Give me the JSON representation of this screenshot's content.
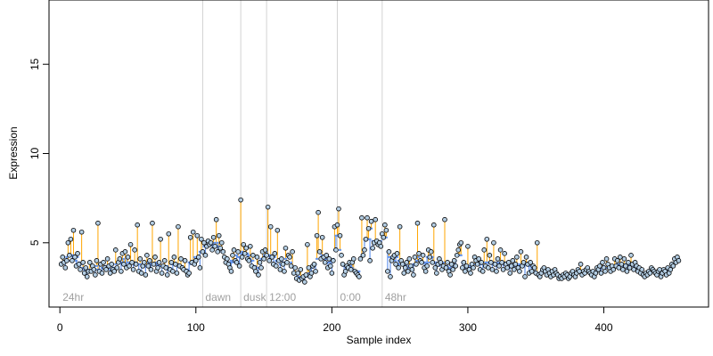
{
  "chart_data": {
    "type": "scatter",
    "title": "",
    "xlabel": "Sample index",
    "ylabel": "Expression",
    "xlim": [
      -8,
      477
    ],
    "ylim": [
      1.4,
      18.6
    ],
    "xticks": [
      0,
      100,
      200,
      300,
      400
    ],
    "yticks": [
      5,
      10,
      15
    ],
    "grid": false,
    "legend": "none",
    "colors": {
      "points_fill": "#b3cde3",
      "points_stroke": "#000000",
      "baseline": "#6495ed",
      "segment": "#ffa500",
      "phase_line": "#d3d3d3",
      "phase_label": "#a0a0a0"
    },
    "phases": [
      {
        "label": "24hr",
        "x": 0
      },
      {
        "label": "dawn",
        "x": 105
      },
      {
        "label": "dusk",
        "x": 133
      },
      {
        "label": "12:00",
        "x": 152
      },
      {
        "label": "0:00",
        "x": 204
      },
      {
        "label": "48hr",
        "x": 237
      }
    ],
    "series": [
      {
        "values": [
          3.8,
          4.2,
          3.9,
          3.6,
          4.0,
          5.0,
          4.3,
          5.2,
          4.0,
          5.7,
          4.2,
          3.7,
          4.4,
          3.8,
          3.5,
          5.6,
          3.9,
          3.3,
          3.6,
          3.1,
          3.4,
          3.9,
          3.4,
          3.7,
          3.5,
          3.2,
          4.0,
          6.1,
          3.4,
          3.8,
          3.3,
          3.9,
          3.6,
          3.5,
          4.1,
          3.7,
          3.3,
          3.8,
          3.5,
          3.4,
          4.6,
          3.6,
          3.9,
          4.1,
          3.4,
          4.4,
          3.8,
          4.5,
          3.6,
          4.2,
          3.7,
          4.9,
          3.9,
          3.5,
          4.6,
          3.8,
          6.0,
          3.4,
          4.1,
          3.3,
          3.7,
          3.9,
          3.2,
          4.3,
          3.7,
          4.0,
          3.5,
          6.1,
          3.8,
          4.2,
          3.4,
          3.6,
          3.9,
          5.2,
          3.3,
          3.7,
          4.0,
          3.6,
          3.2,
          5.5,
          3.5,
          3.9,
          3.4,
          4.2,
          3.8,
          3.3,
          5.9,
          3.7,
          4.1,
          3.6,
          3.5,
          4.0,
          3.4,
          3.2,
          3.3,
          5.3,
          3.9,
          5.6,
          3.8,
          4.0,
          5.4,
          4.2,
          3.6,
          5.2,
          4.5,
          5.0,
          4.3,
          4.8,
          5.1,
          4.9,
          5.0,
          4.6,
          5.3,
          4.8,
          6.3,
          4.5,
          5.4,
          4.7,
          5.0,
          4.5,
          4.2,
          3.9,
          4.1,
          3.8,
          3.6,
          3.4,
          4.3,
          4.6,
          4.0,
          3.9,
          4.5,
          3.7,
          7.4,
          4.2,
          4.9,
          4.4,
          4.7,
          4.1,
          4.0,
          4.8,
          3.7,
          4.3,
          3.6,
          3.4,
          4.2,
          3.2,
          3.9,
          3.6,
          4.5,
          4.1,
          4.6,
          4.3,
          7.0,
          4.0,
          5.9,
          4.2,
          3.8,
          4.4,
          3.7,
          5.7,
          4.0,
          3.5,
          4.1,
          3.8,
          3.4,
          4.7,
          3.9,
          4.3,
          4.2,
          3.7,
          4.5,
          3.3,
          3.6,
          3.0,
          3.3,
          2.9,
          3.5,
          3.0,
          3.1,
          2.8,
          3.2,
          4.9,
          3.6,
          3.1,
          3.3,
          3.7,
          3.8,
          3.4,
          5.4,
          6.7,
          4.5,
          4.1,
          5.3,
          4.2,
          3.9,
          4.3,
          3.6,
          4.1,
          3.7,
          3.3,
          4.0,
          5.9,
          4.6,
          6.0,
          6.9,
          5.4,
          4.3,
          3.8,
          3.2,
          3.4,
          3.7,
          3.6,
          3.9,
          3.5,
          3.9,
          4.1,
          3.4,
          3.3,
          3.2,
          3.1,
          4.1,
          6.4,
          4.3,
          4.6,
          5.2,
          6.4,
          5.8,
          4.0,
          6.2,
          4.7,
          5.0,
          6.3,
          5.1,
          4.9,
          5.0,
          4.8,
          5.5,
          5.3,
          6.0,
          5.7,
          3.4,
          4.5,
          3.1,
          4.0,
          4.2,
          4.3,
          3.8,
          4.4,
          3.6,
          5.9,
          4.0,
          3.8,
          3.3,
          3.6,
          3.9,
          3.4,
          4.1,
          3.7,
          3.5,
          3.2,
          4.2,
          3.8,
          6.1,
          4.4,
          4.0,
          3.9,
          4.3,
          3.6,
          3.4,
          3.7,
          4.6,
          4.2,
          4.5,
          3.9,
          6.0,
          3.6,
          3.3,
          3.8,
          4.1,
          3.9,
          3.5,
          3.7,
          6.3,
          3.6,
          3.9,
          3.4,
          3.2,
          3.8,
          3.5,
          4.0,
          3.7,
          4.3,
          4.6,
          4.9,
          5.0,
          3.6,
          3.9,
          3.4,
          3.7,
          4.8,
          3.5,
          3.3,
          3.8,
          3.6,
          4.2,
          4.0,
          3.8,
          4.1,
          3.5,
          3.9,
          3.4,
          4.6,
          3.7,
          5.2,
          3.6,
          4.3,
          3.9,
          3.5,
          5.0,
          3.8,
          3.4,
          4.1,
          3.7,
          4.6,
          3.9,
          3.5,
          4.4,
          3.8,
          3.6,
          3.9,
          3.3,
          3.7,
          4.0,
          3.5,
          3.8,
          4.2,
          3.6,
          3.4,
          4.5,
          3.7,
          3.9,
          3.1,
          4.2,
          3.8,
          3.3,
          3.9,
          3.4,
          3.7,
          3.6,
          3.3,
          5.0,
          3.2,
          3.1,
          3.3,
          3.5,
          3.6,
          3.4,
          3.2,
          3.5,
          3.3,
          3.1,
          3.4,
          3.2,
          3.5,
          3.3,
          3.2,
          3.0,
          3.1,
          3.0,
          3.2,
          3.1,
          3.3,
          3.2,
          3.0,
          3.1,
          3.3,
          3.4,
          3.2,
          3.1,
          3.3,
          3.5,
          3.4,
          3.8,
          3.2,
          3.4,
          3.3,
          3.5,
          3.6,
          3.4,
          3.3,
          3.2,
          3.4,
          3.1,
          3.3,
          3.6,
          3.5,
          3.7,
          3.3,
          3.9,
          3.6,
          3.4,
          4.1,
          3.8,
          3.6,
          3.4,
          3.7,
          3.5,
          4.1,
          3.7,
          4.0,
          3.6,
          4.2,
          3.8,
          3.5,
          4.1,
          3.7,
          3.4,
          3.9,
          3.6,
          4.3,
          3.8,
          3.5,
          3.9,
          3.7,
          3.4,
          3.6,
          3.3,
          3.5,
          3.2,
          3.1,
          3.3,
          3.2,
          3.4,
          3.3,
          3.6,
          3.5,
          3.4,
          3.3,
          3.2,
          3.4,
          3.5,
          3.1,
          3.3,
          3.5,
          3.4,
          3.2,
          3.6,
          3.3,
          3.5,
          3.8,
          3.7,
          4.1,
          3.9,
          4.2,
          4.0
        ]
      }
    ]
  }
}
